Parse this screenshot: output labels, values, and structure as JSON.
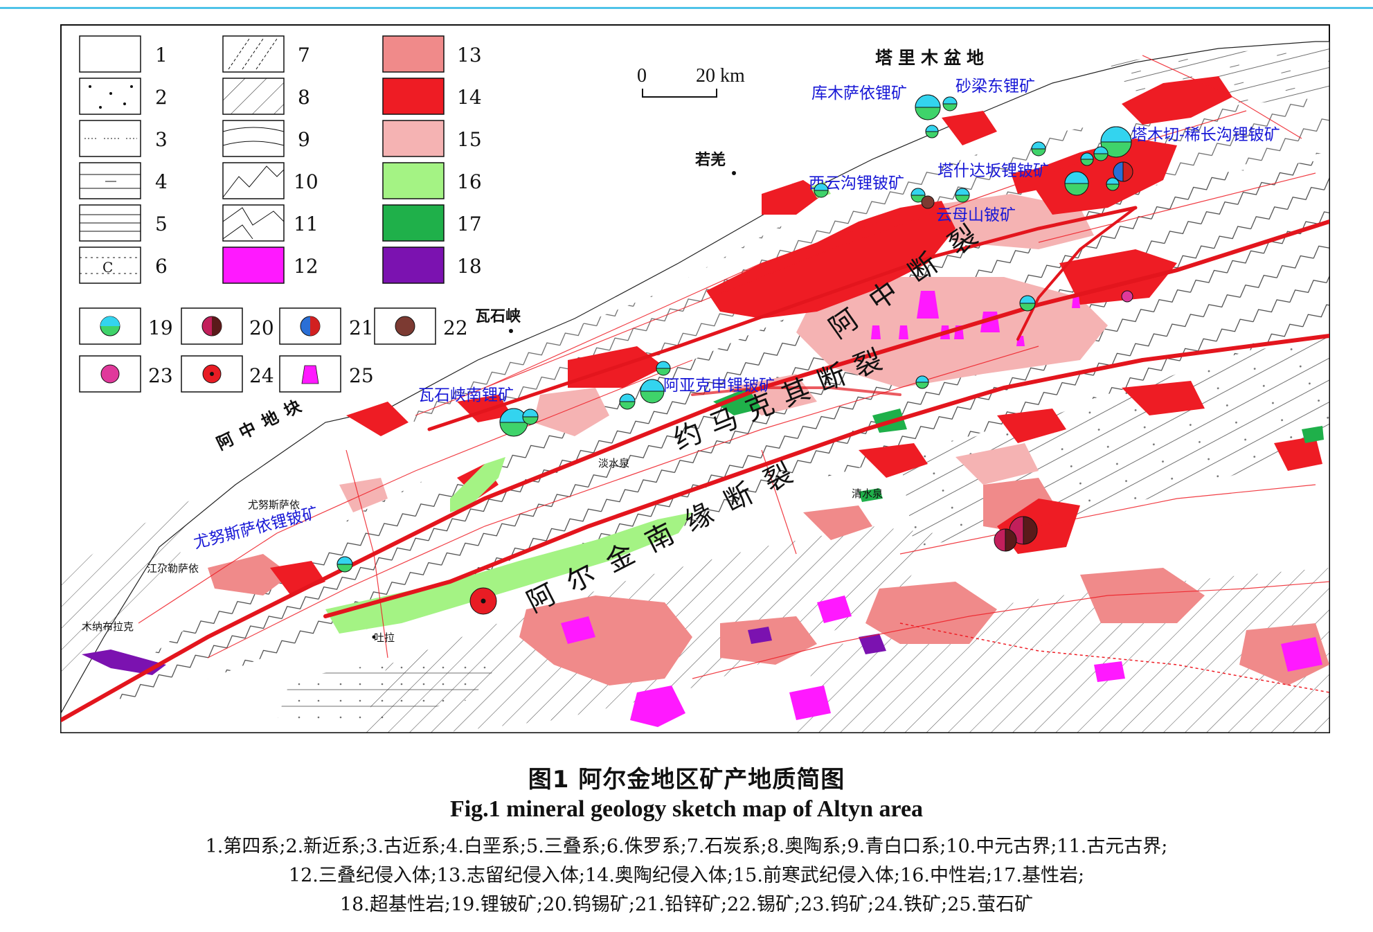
{
  "figure": {
    "caption_zh": "图1 阿尔金地区矿产地质简图",
    "caption_en": "Fig.1 mineral geology sketch map of Altyn area",
    "legend_line1": "1.第四系;2.新近系;3.古近系;4.白垩系;5.三叠系;6.侏罗系;7.石炭系;8.奥陶系;9.青白口系;10.中元古界;11.古元古界;",
    "legend_line2": "12.三叠纪侵入体;13.志留纪侵入体;14.奥陶纪侵入体;15.前寒武纪侵入体;16.中性岩;17.基性岩;",
    "legend_line3": "18.超基性岩;19.锂铍矿;20.钨锡矿;21.铅锌矿;22.锡矿;23.钨矿;24.铁矿;25.萤石矿"
  },
  "legend": {
    "items": [
      {
        "num": "1",
        "pattern": "blank"
      },
      {
        "num": "2",
        "pattern": "dots"
      },
      {
        "num": "3",
        "pattern": "dash-dot"
      },
      {
        "num": "4",
        "pattern": "lines-dash"
      },
      {
        "num": "5",
        "pattern": "lines"
      },
      {
        "num": "6",
        "pattern": "c-dots"
      },
      {
        "num": "7",
        "pattern": "diag-dashed"
      },
      {
        "num": "8",
        "pattern": "diag"
      },
      {
        "num": "9",
        "pattern": "waves"
      },
      {
        "num": "10",
        "pattern": "zigzag"
      },
      {
        "num": "11",
        "pattern": "zigzag-wide"
      },
      {
        "num": "12",
        "color": "#ff19ff"
      },
      {
        "num": "13",
        "color": "#f08a8a"
      },
      {
        "num": "14",
        "color": "#ee1c24"
      },
      {
        "num": "15",
        "color": "#f5b3b3"
      },
      {
        "num": "16",
        "color": "#a4f384"
      },
      {
        "num": "17",
        "color": "#1fb04a"
      },
      {
        "num": "18",
        "color": "#7b12b0"
      },
      {
        "num": "19",
        "symbol": "lithium-beryllium"
      },
      {
        "num": "20",
        "symbol": "tungsten-tin"
      },
      {
        "num": "21",
        "symbol": "lead-zinc"
      },
      {
        "num": "22",
        "symbol": "tin"
      },
      {
        "num": "23",
        "symbol": "tungsten"
      },
      {
        "num": "24",
        "symbol": "iron"
      },
      {
        "num": "25",
        "symbol": "fluorite"
      }
    ]
  },
  "scale_bar": {
    "start": "0",
    "end": "20 km"
  },
  "region_labels": {
    "basin": "塔里木盆地",
    "block": "阿中地块"
  },
  "fault_labels": {
    "azhong": "阿中断裂",
    "yuemakeqi": "约马克其断裂",
    "south": "阿尔金南缘断裂"
  },
  "places": [
    {
      "id": "ruoqiang",
      "name": "若羌"
    },
    {
      "id": "washixia",
      "name": "瓦石峡"
    },
    {
      "id": "danshuiquan",
      "name": "淡水泉"
    },
    {
      "id": "younusisayi",
      "name": "尤努斯萨依"
    },
    {
      "id": "jiangeleisayi",
      "name": "江尕勒萨依"
    },
    {
      "id": "munabulake",
      "name": "木纳布拉克"
    },
    {
      "id": "tula",
      "name": "吐拉"
    },
    {
      "id": "qingshuiquan",
      "name": "清水泉"
    }
  ],
  "mines": [
    {
      "id": "kumusayi",
      "name": "库木萨依锂矿"
    },
    {
      "id": "shaliangdong",
      "name": "砂梁东锂矿"
    },
    {
      "id": "tamuqie",
      "name": "塔木切-稀长沟锂铍矿"
    },
    {
      "id": "xiyungou",
      "name": "西云沟锂铍矿"
    },
    {
      "id": "tashidaban",
      "name": "塔什达坂锂铍矿"
    },
    {
      "id": "yunmushan",
      "name": "云母山铍矿"
    },
    {
      "id": "ayakeshen",
      "name": "阿亚克申锂铍矿"
    },
    {
      "id": "washixianan",
      "name": "瓦石峡南锂矿"
    },
    {
      "id": "younusisayi-mine",
      "name": "尤努斯萨依锂铍矿"
    }
  ],
  "colors": {
    "granite_red": "#ee1c24",
    "silurian_pink": "#f08a8a",
    "precambrian_pink": "#f5b3b3",
    "triassic_magenta": "#ff19ff",
    "intermediate_green": "#a4f384",
    "basic_green": "#1fb04a",
    "ultrabasic_purple": "#7b12b0",
    "mine_label_blue": "#1717d6"
  }
}
